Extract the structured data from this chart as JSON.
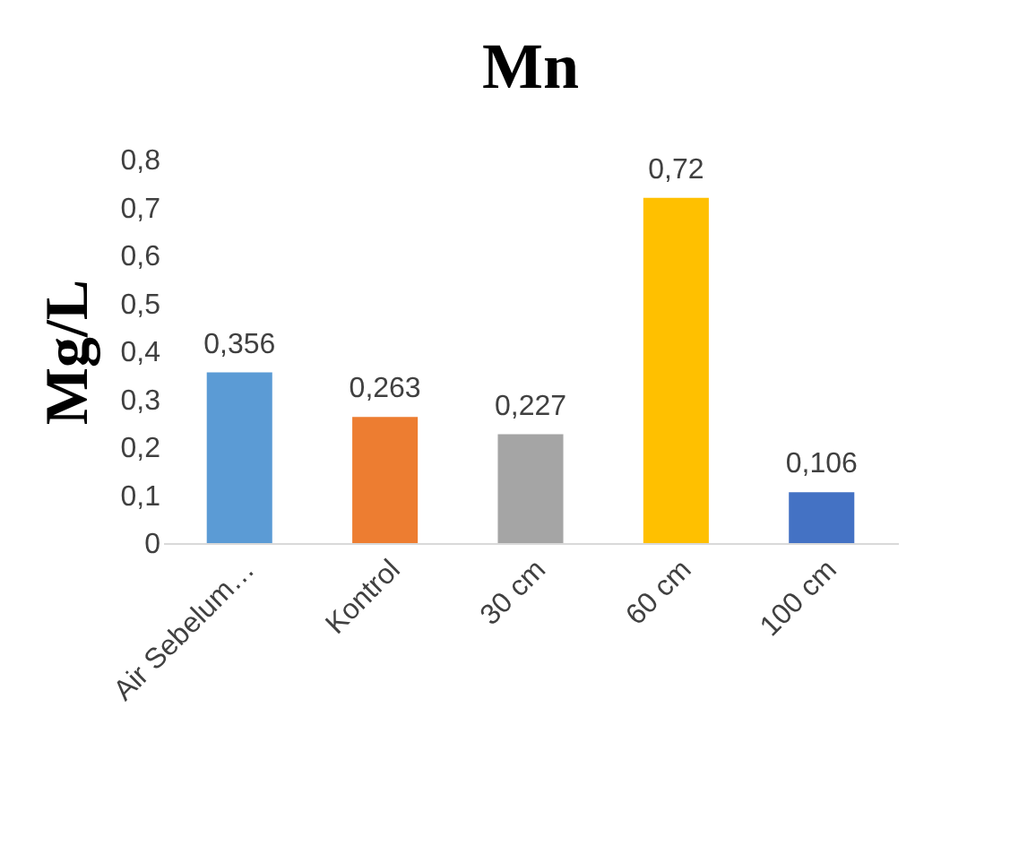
{
  "chart_data": {
    "type": "bar",
    "title": "Mn",
    "ylabel": "Mg/L",
    "categories": [
      "Air Sebelum…",
      "Kontrol",
      "30 cm",
      "60 cm",
      "100 cm"
    ],
    "values": [
      0.356,
      0.263,
      0.227,
      0.72,
      0.106
    ],
    "colors": [
      "#5b9bd5",
      "#ed7d31",
      "#a5a5a5",
      "#ffc000",
      "#4472c4"
    ],
    "value_labels": [
      "0,356",
      "0,263",
      "0,227",
      "0,72",
      "0,106"
    ],
    "ylim": [
      0,
      0.8
    ],
    "yticks": [
      0,
      {
        "value": 0.1,
        "label": "0,1"
      },
      {
        "value": 0.2,
        "label": "0,2"
      },
      {
        "value": 0.3,
        "label": "0,3"
      },
      {
        "value": 0.4,
        "label": "0,4"
      },
      {
        "value": 0.5,
        "label": "0,5"
      },
      {
        "value": 0.6,
        "label": "0,6"
      },
      {
        "value": 0.7,
        "label": "0,7"
      },
      {
        "value": 0.8,
        "label": "0,8"
      }
    ],
    "grid": false,
    "legend": false
  }
}
